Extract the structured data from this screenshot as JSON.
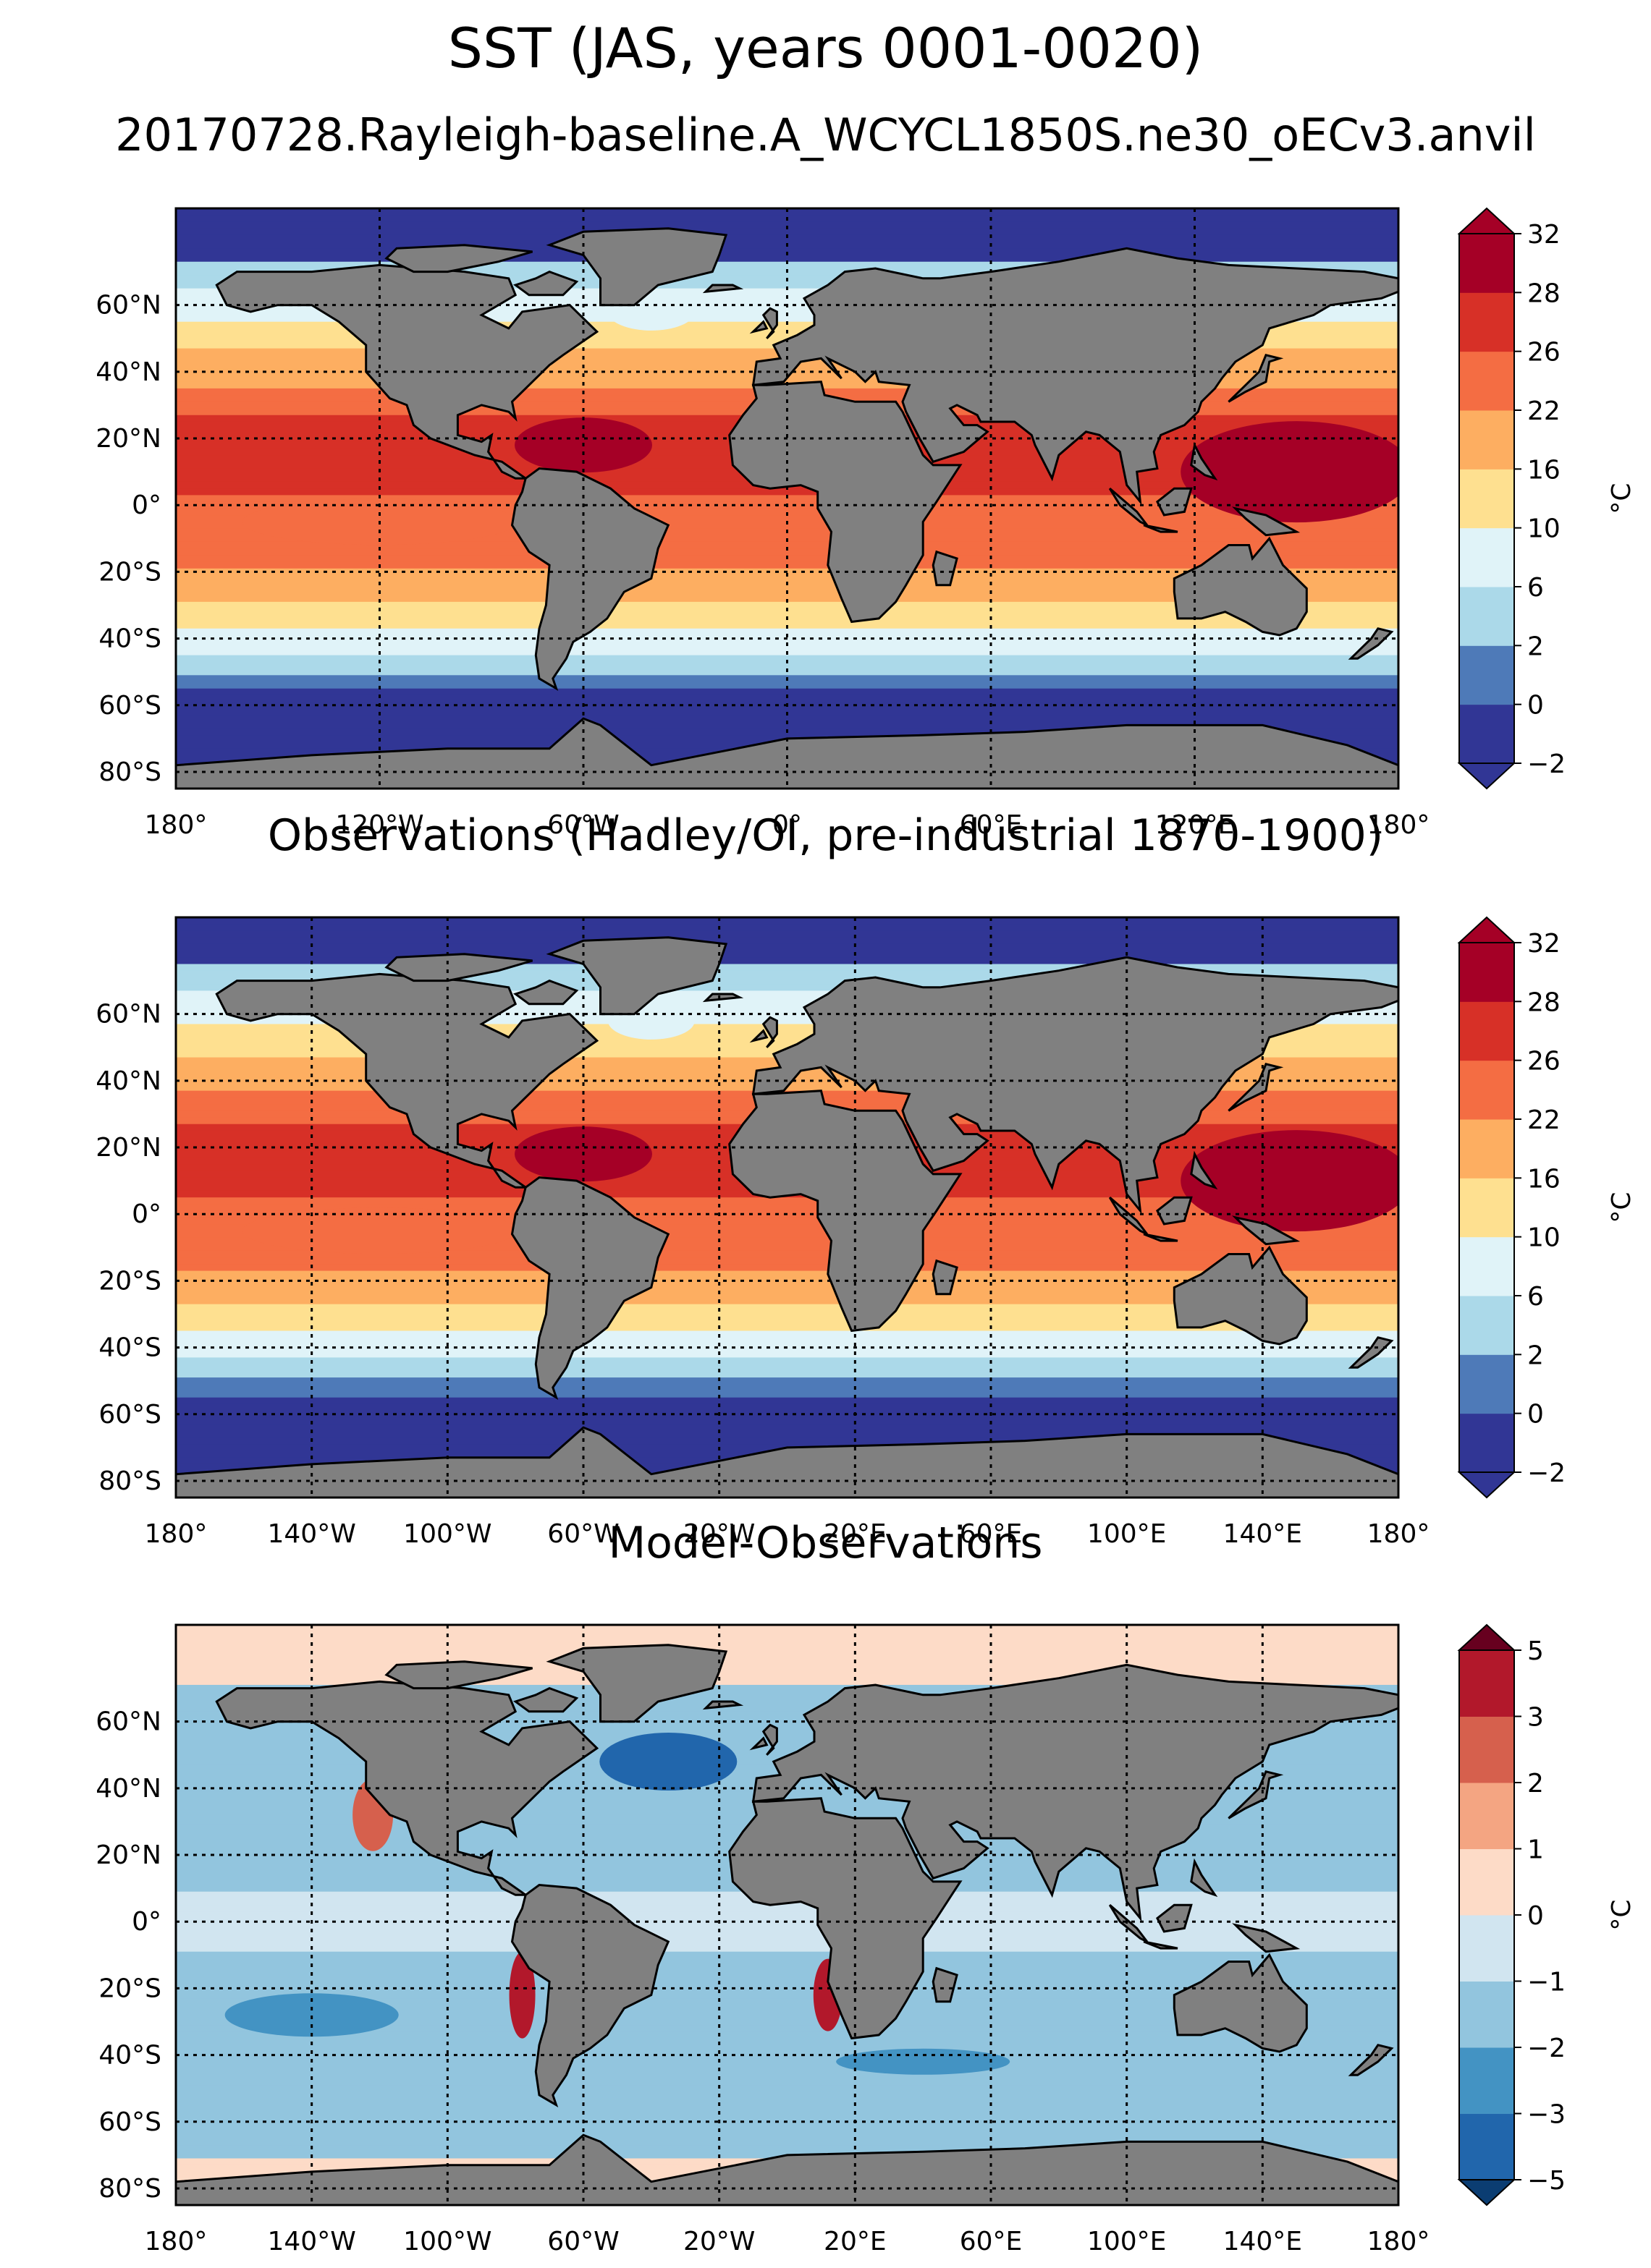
{
  "figure": {
    "title": "SST (JAS, years 0001-0020)",
    "subtitle": "20170728.Rayleigh-baseline.A_WCYCL1850S.ne30_oECv3.anvil"
  },
  "panels": [
    {
      "title": "",
      "lat_ticks": [
        "60°N",
        "40°N",
        "20°N",
        "0°",
        "20°S",
        "40°S",
        "60°S",
        "80°S"
      ],
      "lon_ticks": [
        "180°",
        "120°W",
        "60°W",
        "0°",
        "60°E",
        "120°E",
        "180°"
      ],
      "colorbar": {
        "levels": [
          "−2",
          "0",
          "2",
          "6",
          "10",
          "16",
          "22",
          "26",
          "28",
          "32"
        ],
        "colors": [
          "#313695",
          "#4e7ab8",
          "#abd9e9",
          "#e0f3f8",
          "#fee090",
          "#fdae61",
          "#f46d43",
          "#d73027",
          "#a50026"
        ],
        "extend_low": "#313695",
        "extend_high": "#a50026",
        "unit": "°C"
      }
    },
    {
      "title": "Observations (Hadley/OI, pre-industrial 1870-1900)",
      "lat_ticks": [
        "60°N",
        "40°N",
        "20°N",
        "0°",
        "20°S",
        "40°S",
        "60°S",
        "80°S"
      ],
      "lon_ticks": [
        "180°",
        "140°W",
        "100°W",
        "60°W",
        "20°W",
        "20°E",
        "60°E",
        "100°E",
        "140°E",
        "180°"
      ],
      "colorbar": {
        "levels": [
          "−2",
          "0",
          "2",
          "6",
          "10",
          "16",
          "22",
          "26",
          "28",
          "32"
        ],
        "colors": [
          "#313695",
          "#4e7ab8",
          "#abd9e9",
          "#e0f3f8",
          "#fee090",
          "#fdae61",
          "#f46d43",
          "#d73027",
          "#a50026"
        ],
        "extend_low": "#313695",
        "extend_high": "#a50026",
        "unit": "°C"
      }
    },
    {
      "title": "Model-Observations",
      "lat_ticks": [
        "60°N",
        "40°N",
        "20°N",
        "0°",
        "20°S",
        "40°S",
        "60°S",
        "80°S"
      ],
      "lon_ticks": [
        "180°",
        "140°W",
        "100°W",
        "60°W",
        "20°W",
        "20°E",
        "60°E",
        "100°E",
        "140°E",
        "180°"
      ],
      "colorbar": {
        "levels": [
          "−5",
          "−3",
          "−2",
          "−1",
          "0",
          "1",
          "2",
          "3",
          "5"
        ],
        "colors": [
          "#2166ac",
          "#4393c3",
          "#92c5de",
          "#d1e5f0",
          "#fddbc7",
          "#f4a582",
          "#d6604d",
          "#b2182b"
        ],
        "extend_low": "#0b3d72",
        "extend_high": "#67001f",
        "unit": "°C"
      }
    }
  ],
  "map_colors": {
    "land": "#808080",
    "coast": "#000000",
    "grid": "#000000"
  }
}
